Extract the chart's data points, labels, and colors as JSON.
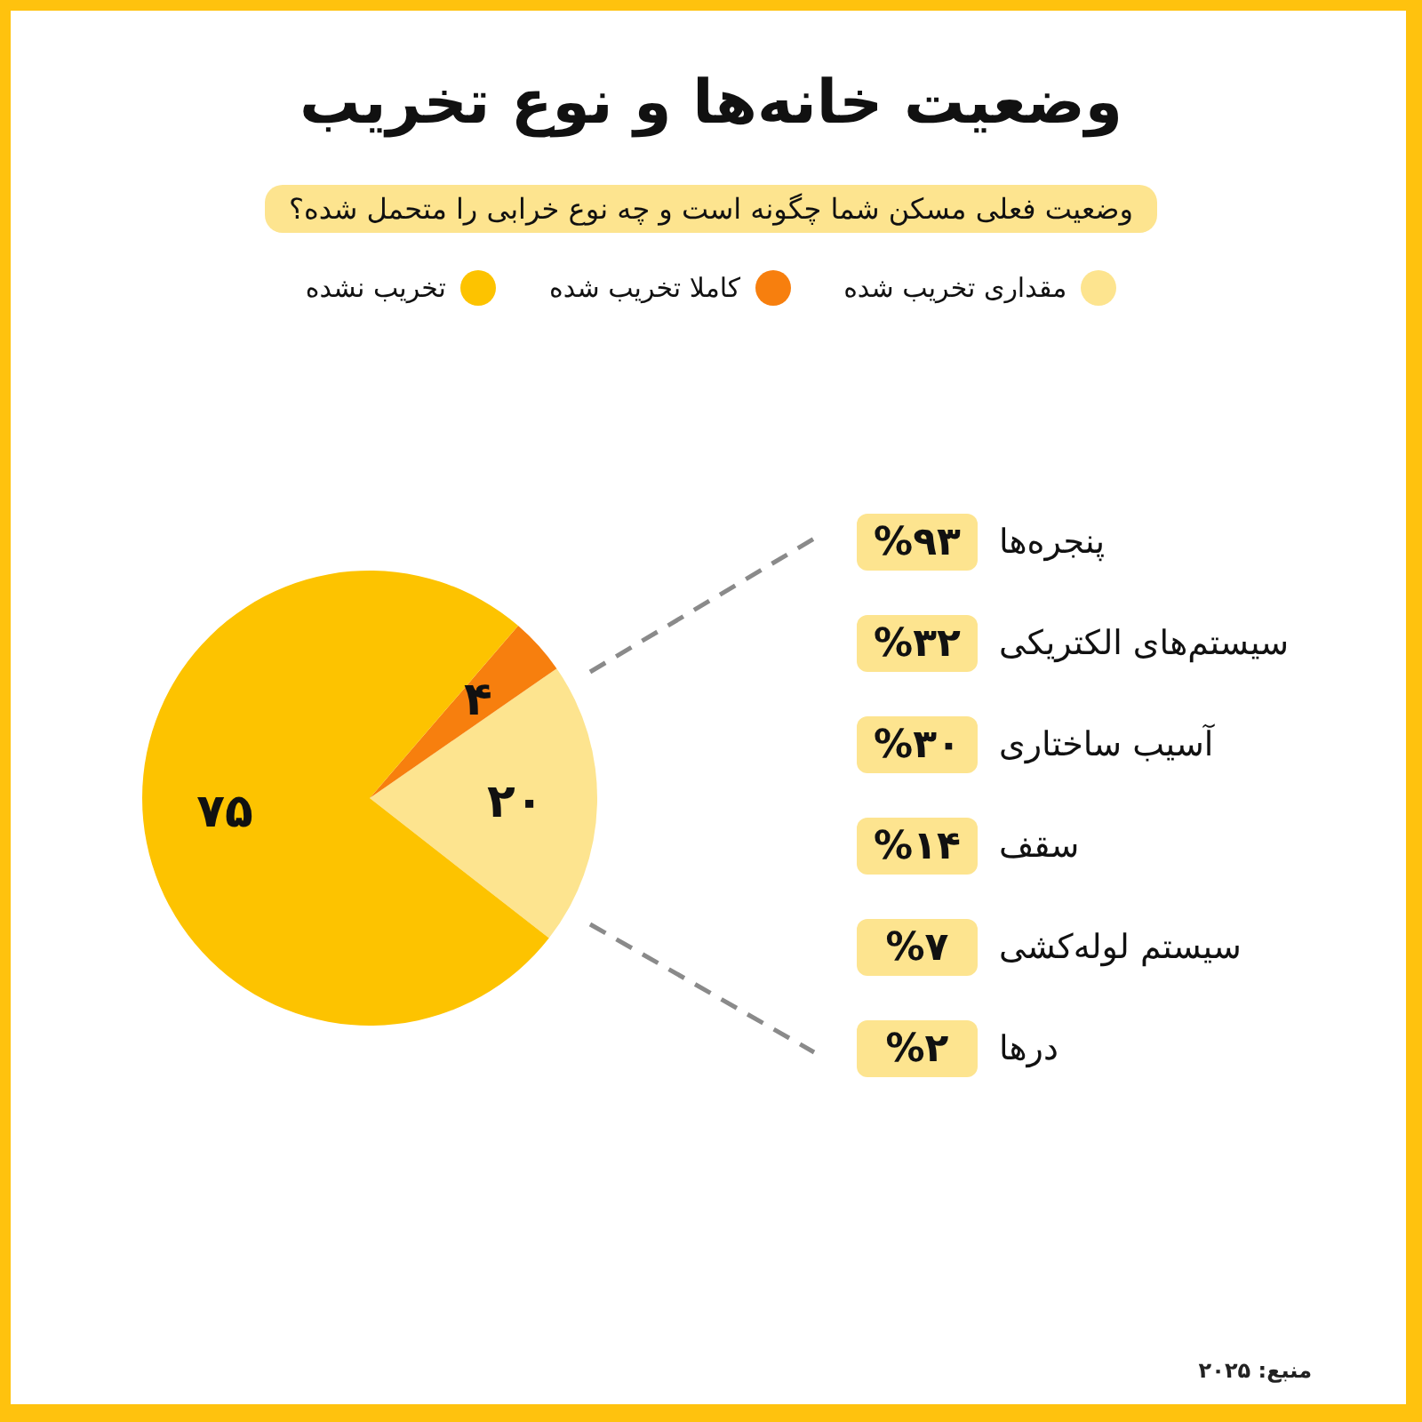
{
  "chart_data": [
    {
      "type": "pie",
      "title": "وضعیت خانه‌ها و نوع تخریب",
      "subtitle": "وضعیت فعلی مسکن شما چگونه است و چه نوع خرابی را متحمل شده؟",
      "categories": [
        "مقداری تخریب شده",
        "کاملا تخریب شده",
        "تخریب نشده"
      ],
      "values": [
        20,
        4,
        75
      ],
      "value_labels": [
        "۲۰",
        "۴",
        "۷۵"
      ],
      "colors": [
        "#fde48f",
        "#f77f0e",
        "#fdc300"
      ],
      "legend": "top",
      "annotations": [
        "منبع: ۲۰۲۵"
      ]
    },
    {
      "type": "other",
      "categories": [
        "پنجره‌ها",
        "سیستم‌های الکتریکی",
        "آسیب ساختاری",
        "سقف",
        "سیستم لوله‌کشی",
        "درها"
      ],
      "values": [
        93,
        32,
        30,
        14,
        7,
        2
      ],
      "value_labels": [
        "%۹۳",
        "%۳۲",
        "%۳۰",
        "%۱۴",
        "%۷",
        "%۲"
      ]
    }
  ]
}
